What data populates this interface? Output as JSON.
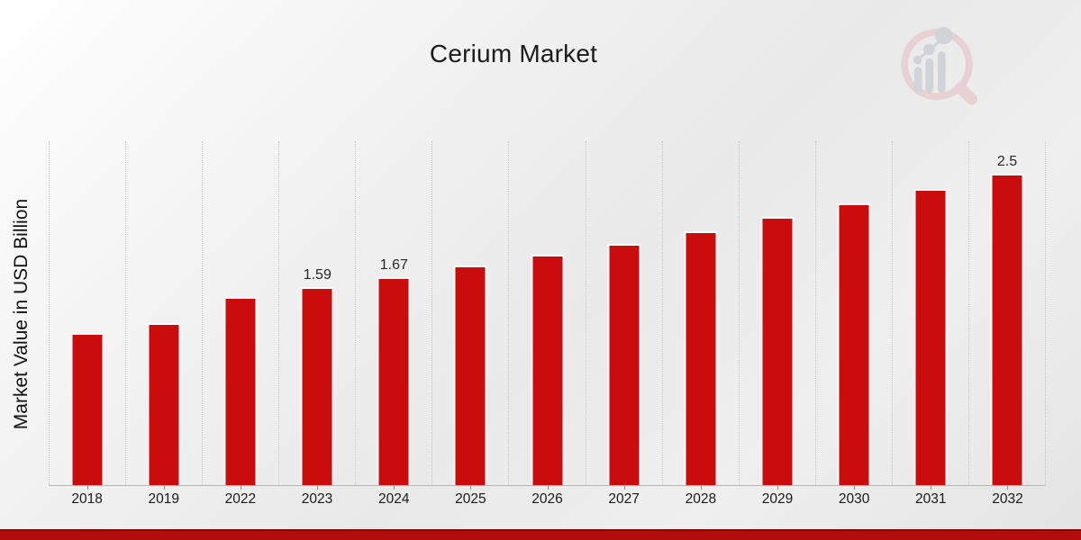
{
  "page": {
    "title": "Cerium Market"
  },
  "branding": {
    "logo_icon": "magnifier-bar-chart-logo",
    "ring_color": "#e7cdce",
    "bars_color": "#ccd0d6"
  },
  "colors": {
    "bar": "#cb0c0c",
    "bar_stroke": "#fafafa",
    "bottom_band": "#b30c0c",
    "bottom_band_edge": "#7f0a0a",
    "gridline": "#c6c6c6",
    "axis_line": "#b5b5b5",
    "text": "#1a1a1a"
  },
  "chart_data": {
    "type": "bar",
    "title": "Cerium Market",
    "xlabel": "",
    "ylabel": "Market Value in USD Billion",
    "categories": [
      "2018",
      "2019",
      "2022",
      "2023",
      "2024",
      "2025",
      "2026",
      "2027",
      "2028",
      "2029",
      "2030",
      "2031",
      "2032"
    ],
    "values": [
      1.22,
      1.3,
      1.51,
      1.59,
      1.67,
      1.76,
      1.85,
      1.94,
      2.04,
      2.15,
      2.26,
      2.38,
      2.5
    ],
    "data_labels": [
      "",
      "",
      "",
      "1.59",
      "1.67",
      "",
      "",
      "",
      "",
      "",
      "",
      "",
      "2.5"
    ],
    "ylim": [
      0,
      2.76
    ],
    "y_axis_ticks_visible": false,
    "grid": "vertical-dashed",
    "legend": "none",
    "bar_color": "#cb0c0c"
  }
}
